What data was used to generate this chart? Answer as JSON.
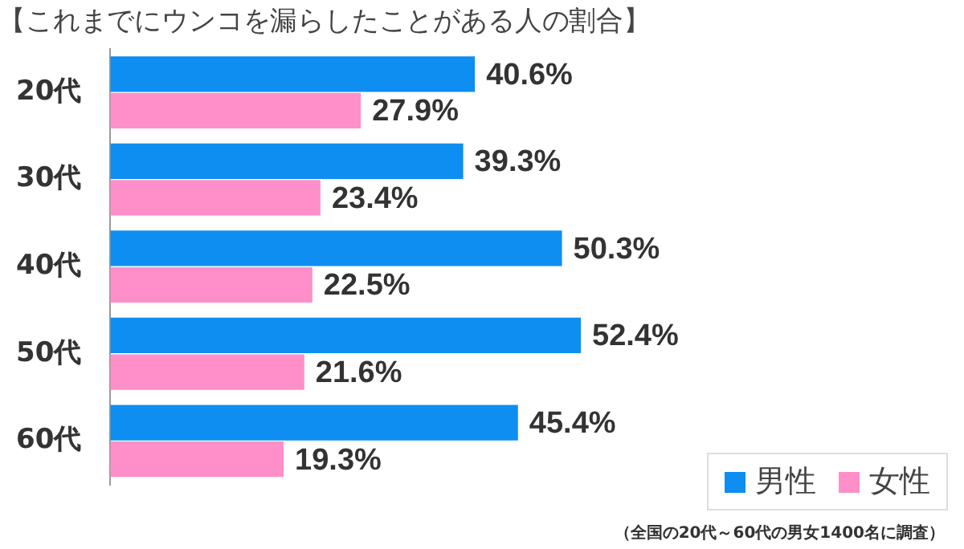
{
  "chart_data": {
    "type": "bar",
    "orientation": "horizontal",
    "title": "【これまでにウンコを漏らしたことがある人の割合】",
    "categories": [
      "20代",
      "30代",
      "40代",
      "50代",
      "60代"
    ],
    "series": [
      {
        "name": "男性",
        "color": "#0d8ef0",
        "values": [
          40.6,
          39.3,
          50.3,
          52.4,
          45.4
        ],
        "value_labels": [
          "40.6%",
          "39.3%",
          "50.3%",
          "52.4%",
          "45.4%"
        ]
      },
      {
        "name": "女性",
        "color": "#ff8fc8",
        "values": [
          27.9,
          23.4,
          22.5,
          21.6,
          19.3
        ],
        "value_labels": [
          "27.9%",
          "23.4%",
          "22.5%",
          "21.6%",
          "19.3%"
        ]
      }
    ],
    "tick_labels": "y",
    "legend": "bottom right",
    "annotations": [
      "（全国の20代～60代の男女1400名に調査）"
    ]
  }
}
